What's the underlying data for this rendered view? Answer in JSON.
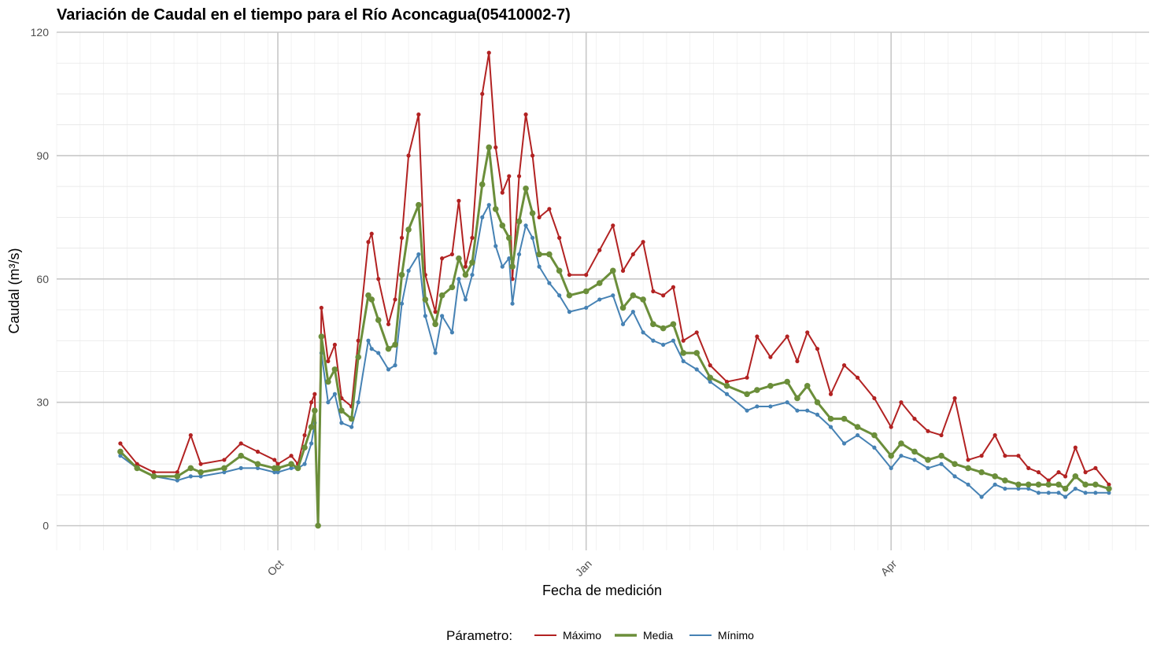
{
  "chart_data": {
    "type": "line",
    "title": "Variación de Caudal en el tiempo para el Río Aconcagua(05410002-7)",
    "xlabel": "Fecha de medición",
    "ylabel": "Caudal (m³/s)",
    "x_start": "2023-08-15",
    "x_end": "2024-06-05",
    "xlim": [
      "2023-07-27",
      "2024-06-17"
    ],
    "ylim": [
      -6,
      120
    ],
    "x_ticks": [
      {
        "date": "2023-10-01",
        "label": "Oct"
      },
      {
        "date": "2024-01-01",
        "label": "Jan"
      },
      {
        "date": "2024-04-01",
        "label": "Apr"
      }
    ],
    "y_ticks": [
      0,
      30,
      60,
      90,
      120
    ],
    "grid": true,
    "legend": {
      "title": "Párametro:",
      "position": "bottom"
    },
    "series": [
      {
        "name": "Máximo",
        "color": "#b22222",
        "points": [
          [
            "2023-08-15",
            20
          ],
          [
            "2023-08-20",
            15
          ],
          [
            "2023-08-25",
            13
          ],
          [
            "2023-09-01",
            13
          ],
          [
            "2023-09-05",
            22
          ],
          [
            "2023-09-08",
            15
          ],
          [
            "2023-09-15",
            16
          ],
          [
            "2023-09-20",
            20
          ],
          [
            "2023-09-25",
            18
          ],
          [
            "2023-09-30",
            16
          ],
          [
            "2023-10-01",
            15
          ],
          [
            "2023-10-05",
            17
          ],
          [
            "2023-10-07",
            15
          ],
          [
            "2023-10-09",
            22
          ],
          [
            "2023-10-11",
            30
          ],
          [
            "2023-10-12",
            32
          ],
          [
            "2023-10-13",
            0
          ],
          [
            "2023-10-14",
            53
          ],
          [
            "2023-10-16",
            40
          ],
          [
            "2023-10-18",
            44
          ],
          [
            "2023-10-20",
            31
          ],
          [
            "2023-10-23",
            29
          ],
          [
            "2023-10-25",
            45
          ],
          [
            "2023-10-28",
            69
          ],
          [
            "2023-10-29",
            71
          ],
          [
            "2023-10-31",
            60
          ],
          [
            "2023-11-03",
            49
          ],
          [
            "2023-11-05",
            55
          ],
          [
            "2023-11-07",
            70
          ],
          [
            "2023-11-09",
            90
          ],
          [
            "2023-11-12",
            100
          ],
          [
            "2023-11-14",
            61
          ],
          [
            "2023-11-17",
            52
          ],
          [
            "2023-11-19",
            65
          ],
          [
            "2023-11-22",
            66
          ],
          [
            "2023-11-24",
            79
          ],
          [
            "2023-11-26",
            63
          ],
          [
            "2023-11-28",
            70
          ],
          [
            "2023-12-01",
            105
          ],
          [
            "2023-12-03",
            115
          ],
          [
            "2023-12-05",
            92
          ],
          [
            "2023-12-07",
            81
          ],
          [
            "2023-12-09",
            85
          ],
          [
            "2023-12-10",
            60
          ],
          [
            "2023-12-12",
            85
          ],
          [
            "2023-12-14",
            100
          ],
          [
            "2023-12-16",
            90
          ],
          [
            "2023-12-18",
            75
          ],
          [
            "2023-12-21",
            77
          ],
          [
            "2023-12-24",
            70
          ],
          [
            "2023-12-27",
            61
          ],
          [
            "2024-01-01",
            61
          ],
          [
            "2024-01-05",
            67
          ],
          [
            "2024-01-09",
            73
          ],
          [
            "2024-01-12",
            62
          ],
          [
            "2024-01-15",
            66
          ],
          [
            "2024-01-18",
            69
          ],
          [
            "2024-01-21",
            57
          ],
          [
            "2024-01-24",
            56
          ],
          [
            "2024-01-27",
            58
          ],
          [
            "2024-01-30",
            45
          ],
          [
            "2024-02-03",
            47
          ],
          [
            "2024-02-07",
            39
          ],
          [
            "2024-02-12",
            35
          ],
          [
            "2024-02-18",
            36
          ],
          [
            "2024-02-21",
            46
          ],
          [
            "2024-02-25",
            41
          ],
          [
            "2024-03-01",
            46
          ],
          [
            "2024-03-04",
            40
          ],
          [
            "2024-03-07",
            47
          ],
          [
            "2024-03-10",
            43
          ],
          [
            "2024-03-14",
            32
          ],
          [
            "2024-03-18",
            39
          ],
          [
            "2024-03-22",
            36
          ],
          [
            "2024-03-27",
            31
          ],
          [
            "2024-04-01",
            24
          ],
          [
            "2024-04-04",
            30
          ],
          [
            "2024-04-08",
            26
          ],
          [
            "2024-04-12",
            23
          ],
          [
            "2024-04-16",
            22
          ],
          [
            "2024-04-20",
            31
          ],
          [
            "2024-04-24",
            16
          ],
          [
            "2024-04-28",
            17
          ],
          [
            "2024-05-02",
            22
          ],
          [
            "2024-05-05",
            17
          ],
          [
            "2024-05-09",
            17
          ],
          [
            "2024-05-12",
            14
          ],
          [
            "2024-05-15",
            13
          ],
          [
            "2024-05-18",
            11
          ],
          [
            "2024-05-21",
            13
          ],
          [
            "2024-05-23",
            12
          ],
          [
            "2024-05-26",
            19
          ],
          [
            "2024-05-29",
            13
          ],
          [
            "2024-06-01",
            14
          ],
          [
            "2024-06-05",
            10
          ]
        ]
      },
      {
        "name": "Media",
        "color": "#6b8e3a",
        "points": [
          [
            "2023-08-15",
            18
          ],
          [
            "2023-08-20",
            14
          ],
          [
            "2023-08-25",
            12
          ],
          [
            "2023-09-01",
            12
          ],
          [
            "2023-09-05",
            14
          ],
          [
            "2023-09-08",
            13
          ],
          [
            "2023-09-15",
            14
          ],
          [
            "2023-09-20",
            17
          ],
          [
            "2023-09-25",
            15
          ],
          [
            "2023-09-30",
            14
          ],
          [
            "2023-10-01",
            14
          ],
          [
            "2023-10-05",
            15
          ],
          [
            "2023-10-07",
            14
          ],
          [
            "2023-10-09",
            19
          ],
          [
            "2023-10-11",
            24
          ],
          [
            "2023-10-12",
            28
          ],
          [
            "2023-10-13",
            0
          ],
          [
            "2023-10-14",
            46
          ],
          [
            "2023-10-16",
            35
          ],
          [
            "2023-10-18",
            38
          ],
          [
            "2023-10-20",
            28
          ],
          [
            "2023-10-23",
            26
          ],
          [
            "2023-10-25",
            41
          ],
          [
            "2023-10-28",
            56
          ],
          [
            "2023-10-29",
            55
          ],
          [
            "2023-10-31",
            50
          ],
          [
            "2023-11-03",
            43
          ],
          [
            "2023-11-05",
            44
          ],
          [
            "2023-11-07",
            61
          ],
          [
            "2023-11-09",
            72
          ],
          [
            "2023-11-12",
            78
          ],
          [
            "2023-11-14",
            55
          ],
          [
            "2023-11-17",
            49
          ],
          [
            "2023-11-19",
            56
          ],
          [
            "2023-11-22",
            58
          ],
          [
            "2023-11-24",
            65
          ],
          [
            "2023-11-26",
            61
          ],
          [
            "2023-11-28",
            64
          ],
          [
            "2023-12-01",
            83
          ],
          [
            "2023-12-03",
            92
          ],
          [
            "2023-12-05",
            77
          ],
          [
            "2023-12-07",
            73
          ],
          [
            "2023-12-09",
            70
          ],
          [
            "2023-12-10",
            63
          ],
          [
            "2023-12-12",
            74
          ],
          [
            "2023-12-14",
            82
          ],
          [
            "2023-12-16",
            76
          ],
          [
            "2023-12-18",
            66
          ],
          [
            "2023-12-21",
            66
          ],
          [
            "2023-12-24",
            62
          ],
          [
            "2023-12-27",
            56
          ],
          [
            "2024-01-01",
            57
          ],
          [
            "2024-01-05",
            59
          ],
          [
            "2024-01-09",
            62
          ],
          [
            "2024-01-12",
            53
          ],
          [
            "2024-01-15",
            56
          ],
          [
            "2024-01-18",
            55
          ],
          [
            "2024-01-21",
            49
          ],
          [
            "2024-01-24",
            48
          ],
          [
            "2024-01-27",
            49
          ],
          [
            "2024-01-30",
            42
          ],
          [
            "2024-02-03",
            42
          ],
          [
            "2024-02-07",
            36
          ],
          [
            "2024-02-12",
            34
          ],
          [
            "2024-02-18",
            32
          ],
          [
            "2024-02-21",
            33
          ],
          [
            "2024-02-25",
            34
          ],
          [
            "2024-03-01",
            35
          ],
          [
            "2024-03-04",
            31
          ],
          [
            "2024-03-07",
            34
          ],
          [
            "2024-03-10",
            30
          ],
          [
            "2024-03-14",
            26
          ],
          [
            "2024-03-18",
            26
          ],
          [
            "2024-03-22",
            24
          ],
          [
            "2024-03-27",
            22
          ],
          [
            "2024-04-01",
            17
          ],
          [
            "2024-04-04",
            20
          ],
          [
            "2024-04-08",
            18
          ],
          [
            "2024-04-12",
            16
          ],
          [
            "2024-04-16",
            17
          ],
          [
            "2024-04-20",
            15
          ],
          [
            "2024-04-24",
            14
          ],
          [
            "2024-04-28",
            13
          ],
          [
            "2024-05-02",
            12
          ],
          [
            "2024-05-05",
            11
          ],
          [
            "2024-05-09",
            10
          ],
          [
            "2024-05-12",
            10
          ],
          [
            "2024-05-15",
            10
          ],
          [
            "2024-05-18",
            10
          ],
          [
            "2024-05-21",
            10
          ],
          [
            "2024-05-23",
            9
          ],
          [
            "2024-05-26",
            12
          ],
          [
            "2024-05-29",
            10
          ],
          [
            "2024-06-01",
            10
          ],
          [
            "2024-06-05",
            9
          ]
        ]
      },
      {
        "name": "Mínimo",
        "color": "#4682b4",
        "points": [
          [
            "2023-08-15",
            17
          ],
          [
            "2023-08-20",
            14
          ],
          [
            "2023-08-25",
            12
          ],
          [
            "2023-09-01",
            11
          ],
          [
            "2023-09-05",
            12
          ],
          [
            "2023-09-08",
            12
          ],
          [
            "2023-09-15",
            13
          ],
          [
            "2023-09-20",
            14
          ],
          [
            "2023-09-25",
            14
          ],
          [
            "2023-09-30",
            13
          ],
          [
            "2023-10-01",
            13
          ],
          [
            "2023-10-05",
            14
          ],
          [
            "2023-10-07",
            14
          ],
          [
            "2023-10-09",
            15
          ],
          [
            "2023-10-11",
            20
          ],
          [
            "2023-10-12",
            25
          ],
          [
            "2023-10-13",
            0
          ],
          [
            "2023-10-14",
            42
          ],
          [
            "2023-10-16",
            30
          ],
          [
            "2023-10-18",
            32
          ],
          [
            "2023-10-20",
            25
          ],
          [
            "2023-10-23",
            24
          ],
          [
            "2023-10-25",
            30
          ],
          [
            "2023-10-28",
            45
          ],
          [
            "2023-10-29",
            43
          ],
          [
            "2023-10-31",
            42
          ],
          [
            "2023-11-03",
            38
          ],
          [
            "2023-11-05",
            39
          ],
          [
            "2023-11-07",
            54
          ],
          [
            "2023-11-09",
            62
          ],
          [
            "2023-11-12",
            66
          ],
          [
            "2023-11-14",
            51
          ],
          [
            "2023-11-17",
            42
          ],
          [
            "2023-11-19",
            51
          ],
          [
            "2023-11-22",
            47
          ],
          [
            "2023-11-24",
            60
          ],
          [
            "2023-11-26",
            55
          ],
          [
            "2023-11-28",
            61
          ],
          [
            "2023-12-01",
            75
          ],
          [
            "2023-12-03",
            78
          ],
          [
            "2023-12-05",
            68
          ],
          [
            "2023-12-07",
            63
          ],
          [
            "2023-12-09",
            65
          ],
          [
            "2023-12-10",
            54
          ],
          [
            "2023-12-12",
            66
          ],
          [
            "2023-12-14",
            73
          ],
          [
            "2023-12-16",
            70
          ],
          [
            "2023-12-18",
            63
          ],
          [
            "2023-12-21",
            59
          ],
          [
            "2023-12-24",
            56
          ],
          [
            "2023-12-27",
            52
          ],
          [
            "2024-01-01",
            53
          ],
          [
            "2024-01-05",
            55
          ],
          [
            "2024-01-09",
            56
          ],
          [
            "2024-01-12",
            49
          ],
          [
            "2024-01-15",
            52
          ],
          [
            "2024-01-18",
            47
          ],
          [
            "2024-01-21",
            45
          ],
          [
            "2024-01-24",
            44
          ],
          [
            "2024-01-27",
            45
          ],
          [
            "2024-01-30",
            40
          ],
          [
            "2024-02-03",
            38
          ],
          [
            "2024-02-07",
            35
          ],
          [
            "2024-02-12",
            32
          ],
          [
            "2024-02-18",
            28
          ],
          [
            "2024-02-21",
            29
          ],
          [
            "2024-02-25",
            29
          ],
          [
            "2024-03-01",
            30
          ],
          [
            "2024-03-04",
            28
          ],
          [
            "2024-03-07",
            28
          ],
          [
            "2024-03-10",
            27
          ],
          [
            "2024-03-14",
            24
          ],
          [
            "2024-03-18",
            20
          ],
          [
            "2024-03-22",
            22
          ],
          [
            "2024-03-27",
            19
          ],
          [
            "2024-04-01",
            14
          ],
          [
            "2024-04-04",
            17
          ],
          [
            "2024-04-08",
            16
          ],
          [
            "2024-04-12",
            14
          ],
          [
            "2024-04-16",
            15
          ],
          [
            "2024-04-20",
            12
          ],
          [
            "2024-04-24",
            10
          ],
          [
            "2024-04-28",
            7
          ],
          [
            "2024-05-02",
            10
          ],
          [
            "2024-05-05",
            9
          ],
          [
            "2024-05-09",
            9
          ],
          [
            "2024-05-12",
            9
          ],
          [
            "2024-05-15",
            8
          ],
          [
            "2024-05-18",
            8
          ],
          [
            "2024-05-21",
            8
          ],
          [
            "2024-05-23",
            7
          ],
          [
            "2024-05-26",
            9
          ],
          [
            "2024-05-29",
            8
          ],
          [
            "2024-06-01",
            8
          ],
          [
            "2024-06-05",
            8
          ]
        ]
      }
    ]
  }
}
